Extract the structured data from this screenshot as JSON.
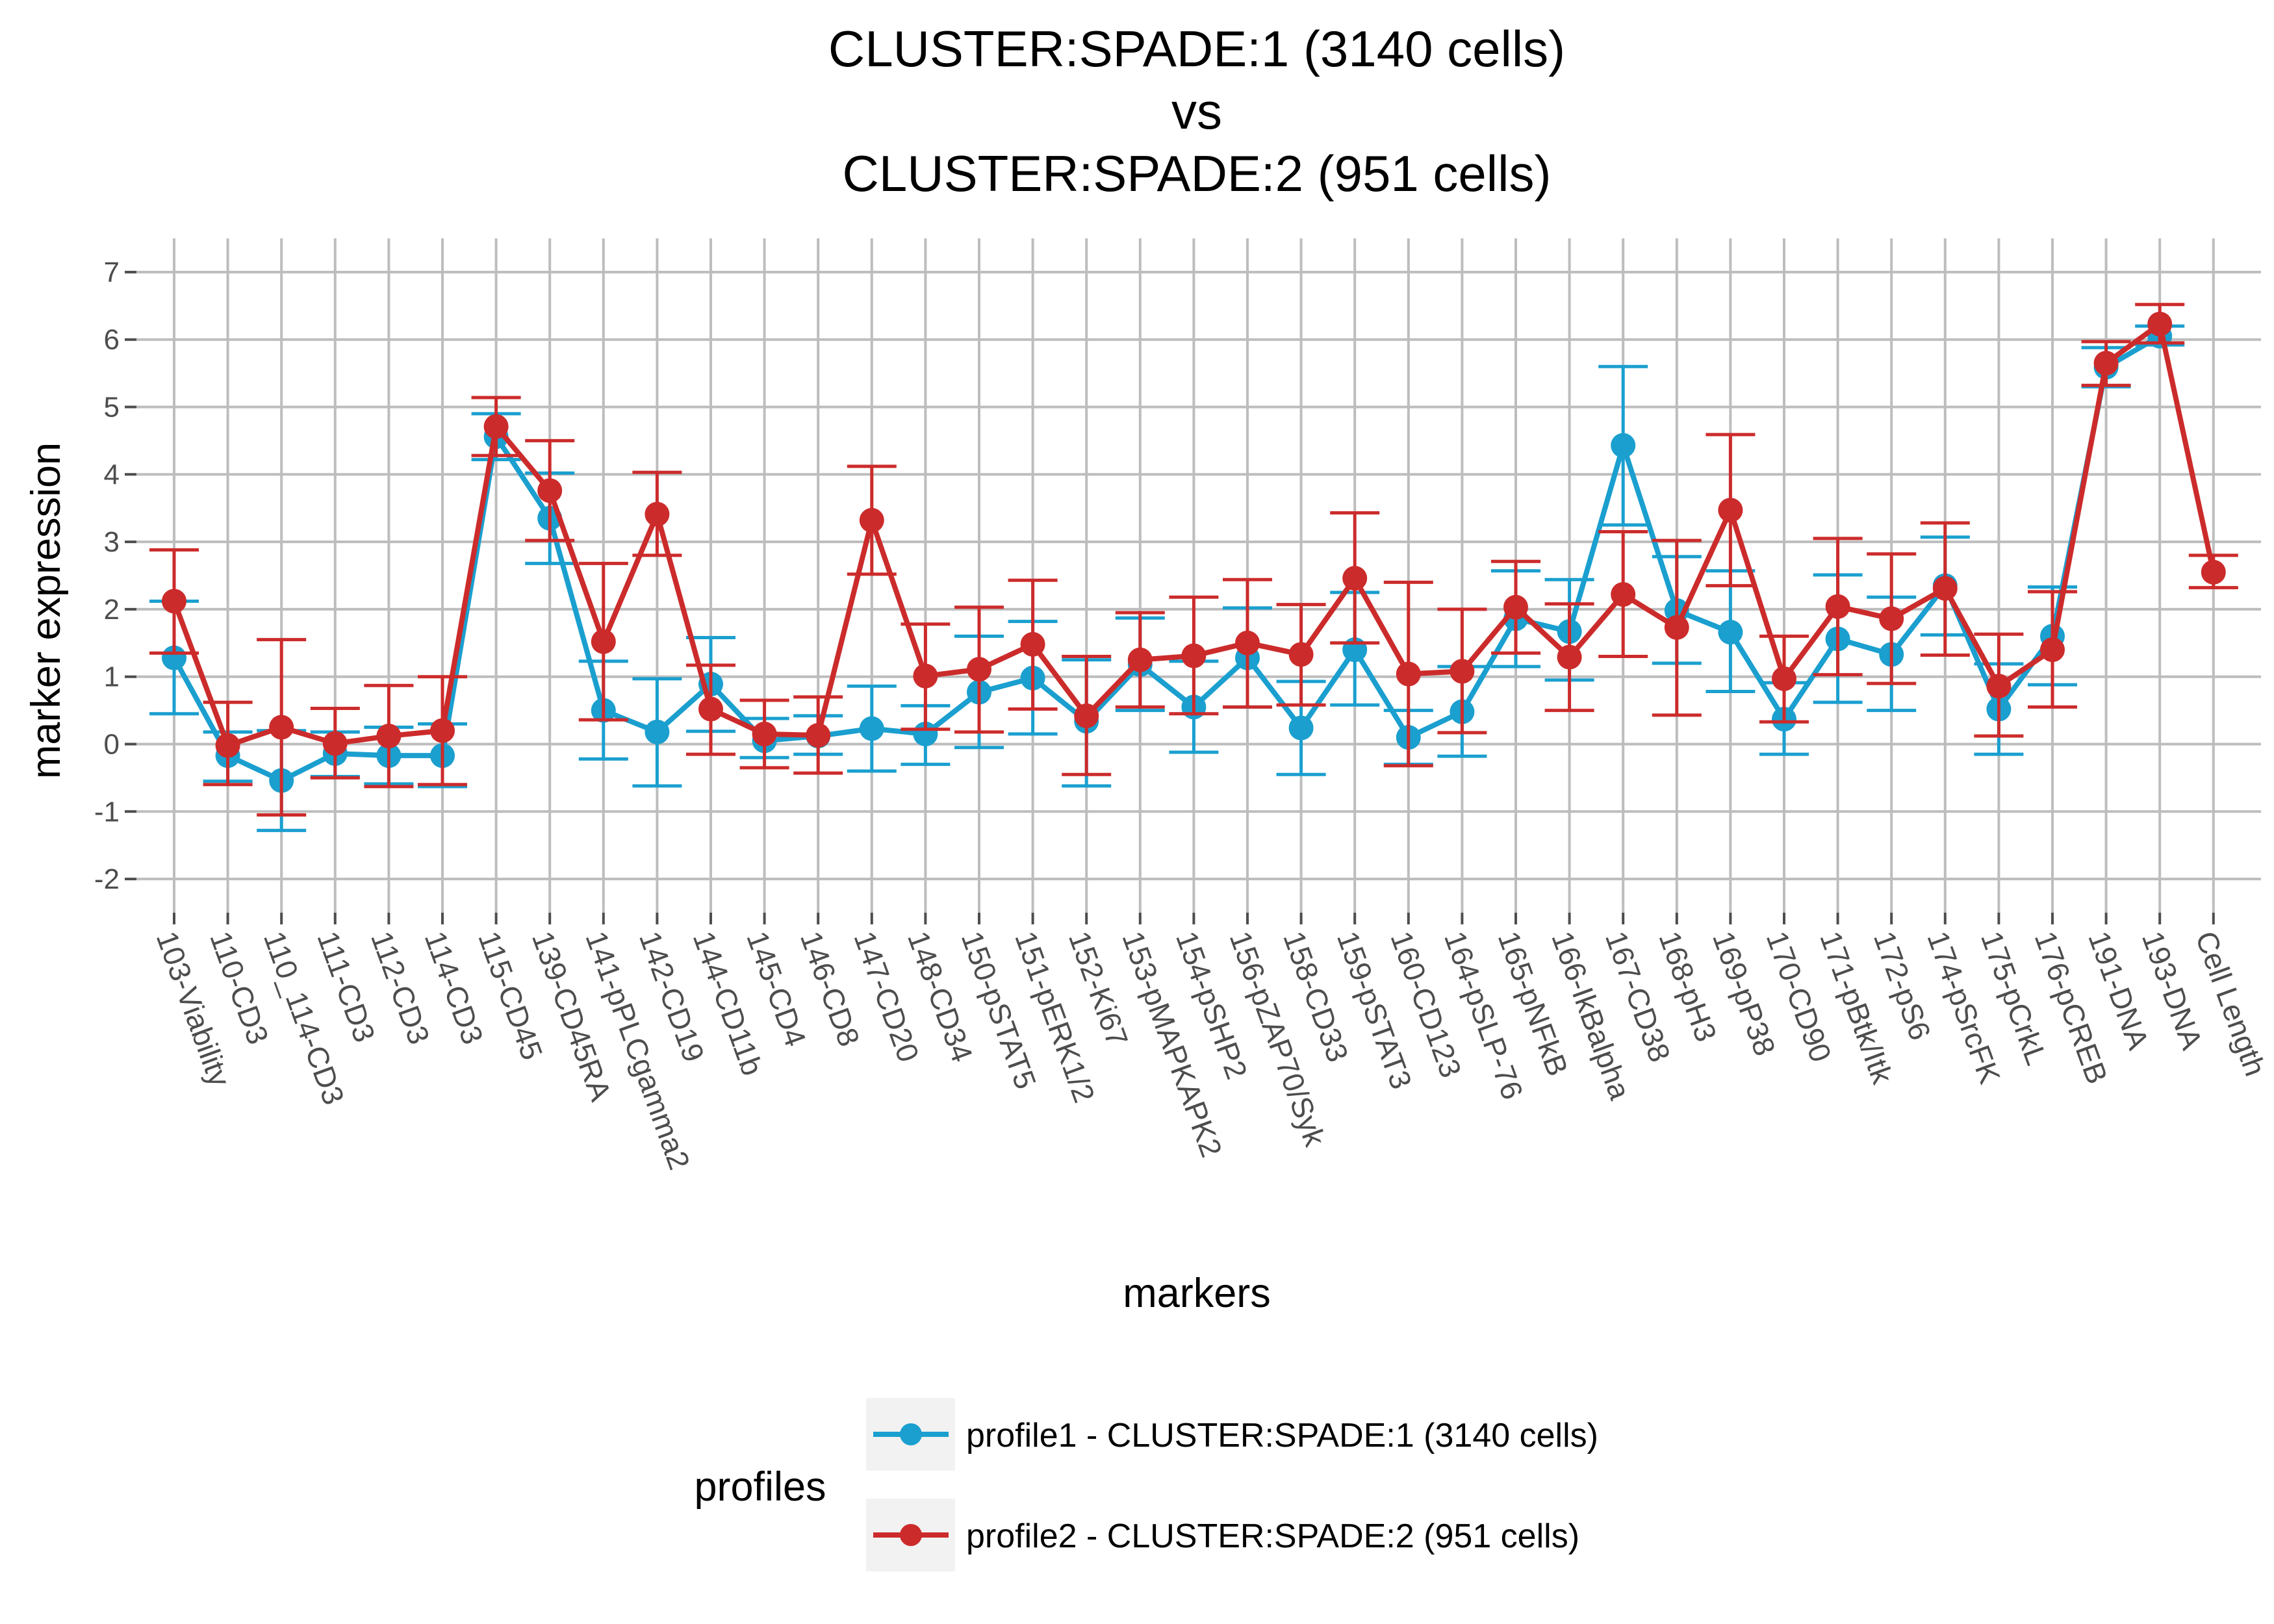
{
  "chart_data": {
    "type": "line",
    "title": [
      "CLUSTER:SPADE:1 (3140 cells)",
      "vs",
      "CLUSTER:SPADE:2 (951 cells)"
    ],
    "xlabel": "markers",
    "ylabel": "marker expression",
    "ylim": [
      -2.5,
      7.5
    ],
    "yticks": [
      -2,
      -1,
      0,
      1,
      2,
      3,
      4,
      5,
      6,
      7
    ],
    "grid": true,
    "legend_position": "bottom",
    "legend_title": "profiles",
    "categories": [
      "103-Viability",
      "110-CD3",
      "110_114-CD3",
      "111-CD3",
      "112-CD3",
      "114-CD3",
      "115-CD45",
      "139-CD45RA",
      "141-pPLCgamma2",
      "142-CD19",
      "144-CD11b",
      "145-CD4",
      "146-CD8",
      "147-CD20",
      "148-CD34",
      "150-pSTAT5",
      "151-pERK1/2",
      "152-Ki67",
      "153-pMAPKAPK2",
      "154-pSHP2",
      "156-pZAP70/Syk",
      "158-CD33",
      "159-pSTAT3",
      "160-CD123",
      "164-pSLP-76",
      "165-pNFkB",
      "166-IkBalpha",
      "167-CD38",
      "168-pH3",
      "169-pP38",
      "170-CD90",
      "171-pBtk/Itk",
      "172-pS6",
      "174-pSrcFK",
      "175-pCrkL",
      "176-pCREB",
      "191-DNA",
      "193-DNA",
      "Cell Length"
    ],
    "series": [
      {
        "name": "profile1 - CLUSTER:SPADE:1 (3140 cells)",
        "color": "#1a9fcf",
        "values": [
          1.28,
          -0.17,
          -0.54,
          -0.14,
          -0.17,
          -0.17,
          4.56,
          3.35,
          0.5,
          0.18,
          0.89,
          0.05,
          0.12,
          0.23,
          0.15,
          0.77,
          0.98,
          0.34,
          1.18,
          0.55,
          1.28,
          0.24,
          1.4,
          0.1,
          0.48,
          1.86,
          1.67,
          4.43,
          1.98,
          1.66,
          0.37,
          1.56,
          1.33,
          2.35,
          0.52,
          1.6,
          5.59,
          6.05,
          null
        ],
        "err_low": [
          0.45,
          -0.55,
          -1.28,
          -0.48,
          -0.59,
          -0.63,
          4.22,
          2.68,
          -0.22,
          -0.62,
          0.19,
          -0.2,
          -0.15,
          -0.4,
          -0.3,
          -0.05,
          0.15,
          -0.62,
          0.5,
          -0.12,
          0.55,
          -0.45,
          0.58,
          -0.3,
          -0.18,
          1.15,
          0.95,
          3.25,
          1.2,
          0.78,
          -0.15,
          0.62,
          0.5,
          1.62,
          -0.15,
          0.88,
          5.3,
          5.92,
          null
        ],
        "err_high": [
          2.12,
          0.18,
          0.2,
          0.18,
          0.25,
          0.3,
          4.9,
          4.02,
          1.23,
          0.97,
          1.58,
          0.38,
          0.42,
          0.86,
          0.57,
          1.6,
          1.82,
          1.25,
          1.87,
          1.23,
          2.02,
          0.93,
          2.25,
          0.5,
          1.15,
          2.57,
          2.44,
          5.6,
          2.78,
          2.57,
          0.91,
          2.51,
          2.18,
          3.07,
          1.19,
          2.33,
          5.88,
          6.2,
          null
        ]
      },
      {
        "name": "profile2 - CLUSTER:SPADE:2 (951 cells)",
        "color": "#cc2b2b",
        "values": [
          2.12,
          -0.02,
          0.25,
          0.01,
          0.12,
          0.2,
          4.71,
          3.76,
          1.52,
          3.41,
          0.52,
          0.15,
          0.13,
          3.32,
          1.01,
          1.11,
          1.48,
          0.42,
          1.25,
          1.31,
          1.5,
          1.33,
          2.46,
          1.04,
          1.08,
          2.03,
          1.29,
          2.22,
          1.73,
          3.47,
          0.97,
          2.04,
          1.86,
          2.31,
          0.86,
          1.4,
          5.65,
          6.23,
          2.55
        ],
        "err_low": [
          1.35,
          -0.6,
          -1.05,
          -0.5,
          -0.63,
          -0.6,
          4.28,
          3.02,
          0.36,
          2.8,
          -0.15,
          -0.35,
          -0.43,
          2.52,
          0.22,
          0.18,
          0.52,
          -0.45,
          0.55,
          0.45,
          0.55,
          0.58,
          1.5,
          -0.32,
          0.17,
          1.35,
          0.5,
          1.3,
          0.43,
          2.35,
          0.33,
          1.03,
          0.9,
          1.32,
          0.12,
          0.55,
          5.32,
          5.95,
          2.32
        ],
        "err_high": [
          2.88,
          0.62,
          1.55,
          0.53,
          0.87,
          1.0,
          5.14,
          4.5,
          2.68,
          4.03,
          1.17,
          0.65,
          0.7,
          4.12,
          1.78,
          2.03,
          2.43,
          1.3,
          1.95,
          2.18,
          2.44,
          2.07,
          3.43,
          2.4,
          2.0,
          2.71,
          2.08,
          3.15,
          3.02,
          4.59,
          1.6,
          3.05,
          2.82,
          3.28,
          1.63,
          2.26,
          5.97,
          6.52,
          2.8
        ]
      }
    ]
  }
}
